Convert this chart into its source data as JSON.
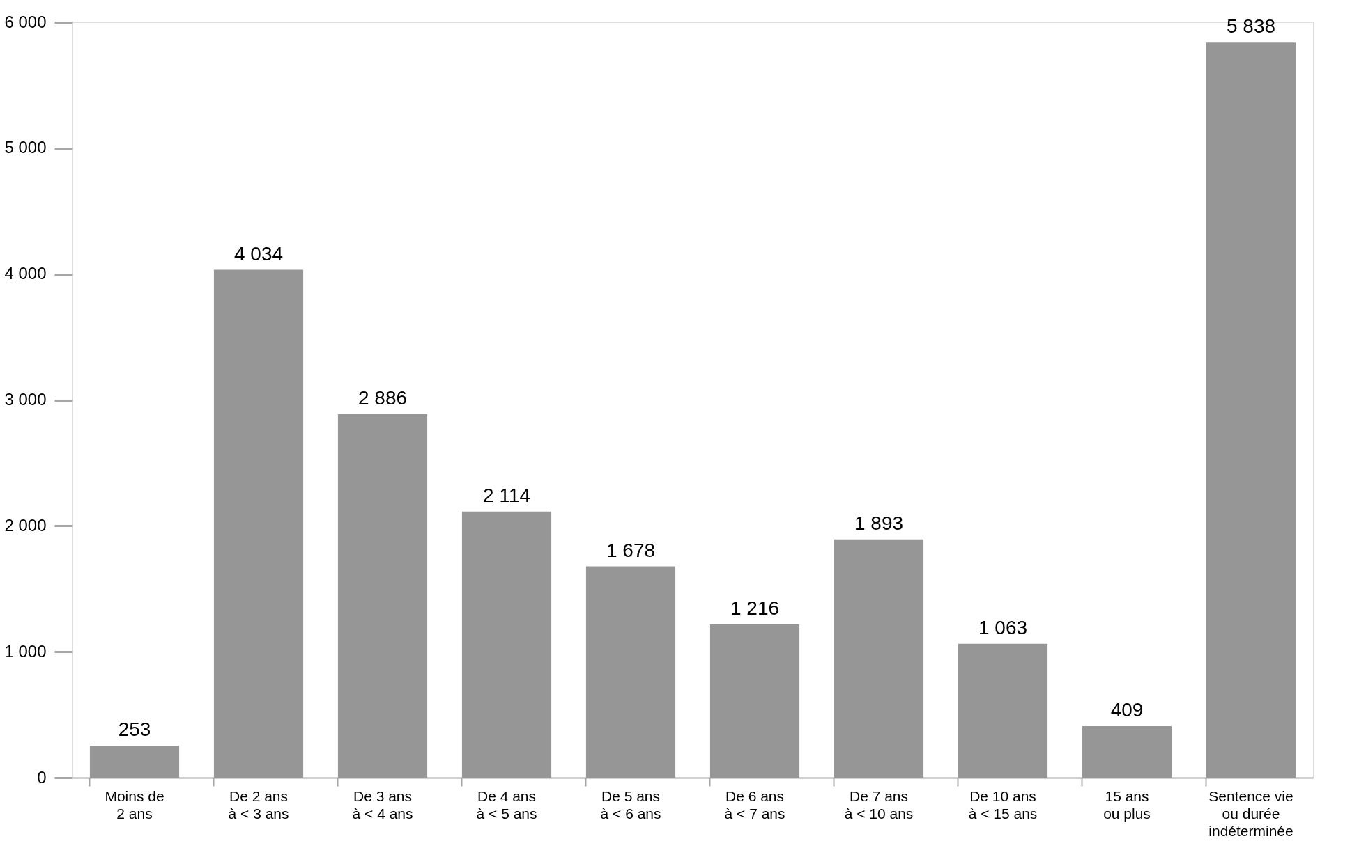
{
  "chart_data": {
    "type": "bar",
    "categories": [
      "Moins de\n2 ans",
      "De 2 ans\nà < 3 ans",
      "De 3 ans\nà < 4 ans",
      "De 4 ans\nà < 5 ans",
      "De 5 ans\nà < 6 ans",
      "De 6 ans\nà < 7 ans",
      "De 7 ans\nà < 10 ans",
      "De 10 ans\nà < 15 ans",
      "15 ans\nou plus",
      "Sentence vie\nou durée\nindéterminée"
    ],
    "values": [
      253,
      4034,
      2886,
      2114,
      1678,
      1216,
      1893,
      1063,
      409,
      5838
    ],
    "value_labels": [
      "253",
      "4 034",
      "2 886",
      "2 114",
      "1 678",
      "1 216",
      "1 893",
      "1 063",
      "409",
      "5 838"
    ],
    "color": "#969696",
    "ylim": [
      0,
      6000
    ],
    "yticks": [
      0,
      {
        "value": 1000,
        "label": "1 000"
      },
      {
        "value": 2000,
        "label": "2 000"
      },
      {
        "value": 3000,
        "label": "3 000"
      },
      {
        "value": 4000,
        "label": "4 000"
      },
      {
        "value": 5000,
        "label": "5 000"
      },
      {
        "value": 6000,
        "label": "6 000"
      }
    ],
    "grid": false
  }
}
